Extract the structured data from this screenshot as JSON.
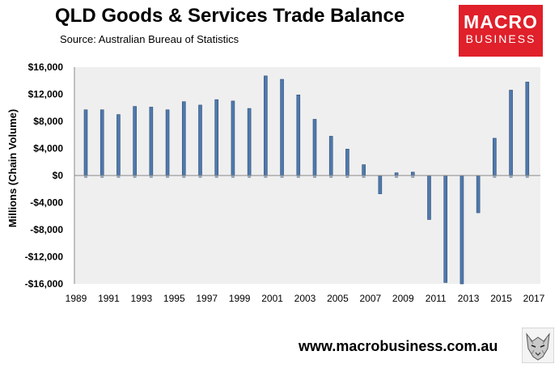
{
  "header": {
    "title": "QLD Goods & Services Trade Balance",
    "source": "Source:  Australian Bureau of Statistics"
  },
  "logo": {
    "line1": "MACRO",
    "line2": "BUSINESS",
    "color": "#e0202a"
  },
  "footer": {
    "website": "www.macrobusiness.com.au"
  },
  "chart_data": {
    "type": "bar",
    "title": "QLD Goods & Services Trade Balance",
    "xlabel": "",
    "ylabel": "Millions (Chain Volume)",
    "ylim": [
      -16000,
      16000
    ],
    "yticks": [
      16000,
      12000,
      8000,
      4000,
      0,
      -4000,
      -8000,
      -12000,
      -16000
    ],
    "ytick_labels": [
      "$16,000",
      "$12,000",
      "$8,000",
      "$4,000",
      "$0",
      "-$4,000",
      "-$8,000",
      "-$12,000",
      "-$16,000"
    ],
    "xtick_labels": [
      "1989",
      "1991",
      "1993",
      "1995",
      "1997",
      "1999",
      "2001",
      "2003",
      "2005",
      "2007",
      "2009",
      "2011",
      "2013",
      "2015",
      "2017"
    ],
    "categories": [
      "1990",
      "1991",
      "1992",
      "1993",
      "1994",
      "1995",
      "1996",
      "1997",
      "1998",
      "1999",
      "2000",
      "2001",
      "2002",
      "2003",
      "2004",
      "2005",
      "2006",
      "2007",
      "2008",
      "2009",
      "2010",
      "2011",
      "2012",
      "2013",
      "2014",
      "2015",
      "2016",
      "2017"
    ],
    "values": [
      9700,
      9700,
      9000,
      10200,
      10100,
      9700,
      10900,
      10400,
      11200,
      11000,
      9900,
      14700,
      14200,
      11900,
      8300,
      5800,
      3900,
      1600,
      -2700,
      400,
      500,
      -6500,
      -15800,
      -16000,
      -5500,
      5500,
      12600,
      13800
    ],
    "bar_color": "#4f79ad",
    "bar_edge_color": "#2f4f78",
    "plot_background": "#efefef",
    "grid": false,
    "legend": "none"
  }
}
